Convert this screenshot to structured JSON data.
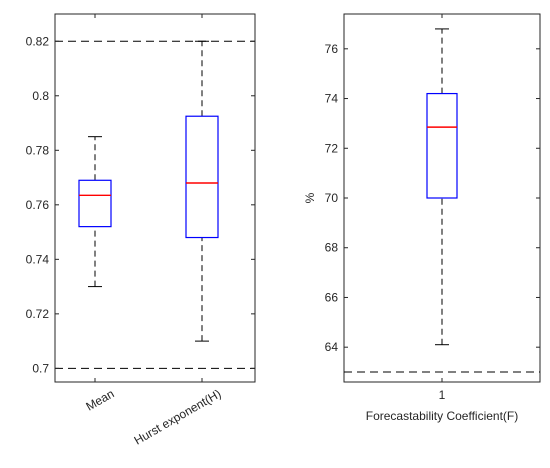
{
  "chart_data": [
    {
      "type": "boxplot",
      "categories": [
        "Mean",
        "Hurst exponent(H)"
      ],
      "ylim": [
        0.695,
        0.83
      ],
      "yticks": [
        "0.7",
        "0.72",
        "0.74",
        "0.76",
        "0.78",
        "0.8",
        "0.82"
      ],
      "ytick_values": [
        0.7,
        0.72,
        0.74,
        0.76,
        0.78,
        0.8,
        0.82
      ],
      "boxes": [
        {
          "whisker_low": 0.73,
          "q1": 0.752,
          "median": 0.7635,
          "q3": 0.769,
          "whisker_high": 0.785
        },
        {
          "whisker_low": 0.71,
          "q1": 0.748,
          "median": 0.768,
          "q3": 0.7925,
          "whisker_high": 0.82
        }
      ],
      "reference_lines": [
        0.7,
        0.82
      ],
      "xlabel": "",
      "ylabel": ""
    },
    {
      "type": "boxplot",
      "categories": [
        "1"
      ],
      "ylim": [
        62.6,
        77.4
      ],
      "yticks": [
        "64",
        "66",
        "68",
        "70",
        "72",
        "74",
        "76"
      ],
      "ytick_values": [
        64,
        66,
        68,
        70,
        72,
        74,
        76
      ],
      "boxes": [
        {
          "whisker_low": 64.1,
          "q1": 70.0,
          "median": 72.85,
          "q3": 74.2,
          "whisker_high": 76.8
        }
      ],
      "reference_lines": [
        63.0
      ],
      "xlabel": "Forecastability Coefficient(F)",
      "ylabel": "%"
    }
  ],
  "colors": {
    "box": "#0000ff",
    "median": "#ff0000",
    "whisker": "#000000",
    "axis": "#262626"
  }
}
